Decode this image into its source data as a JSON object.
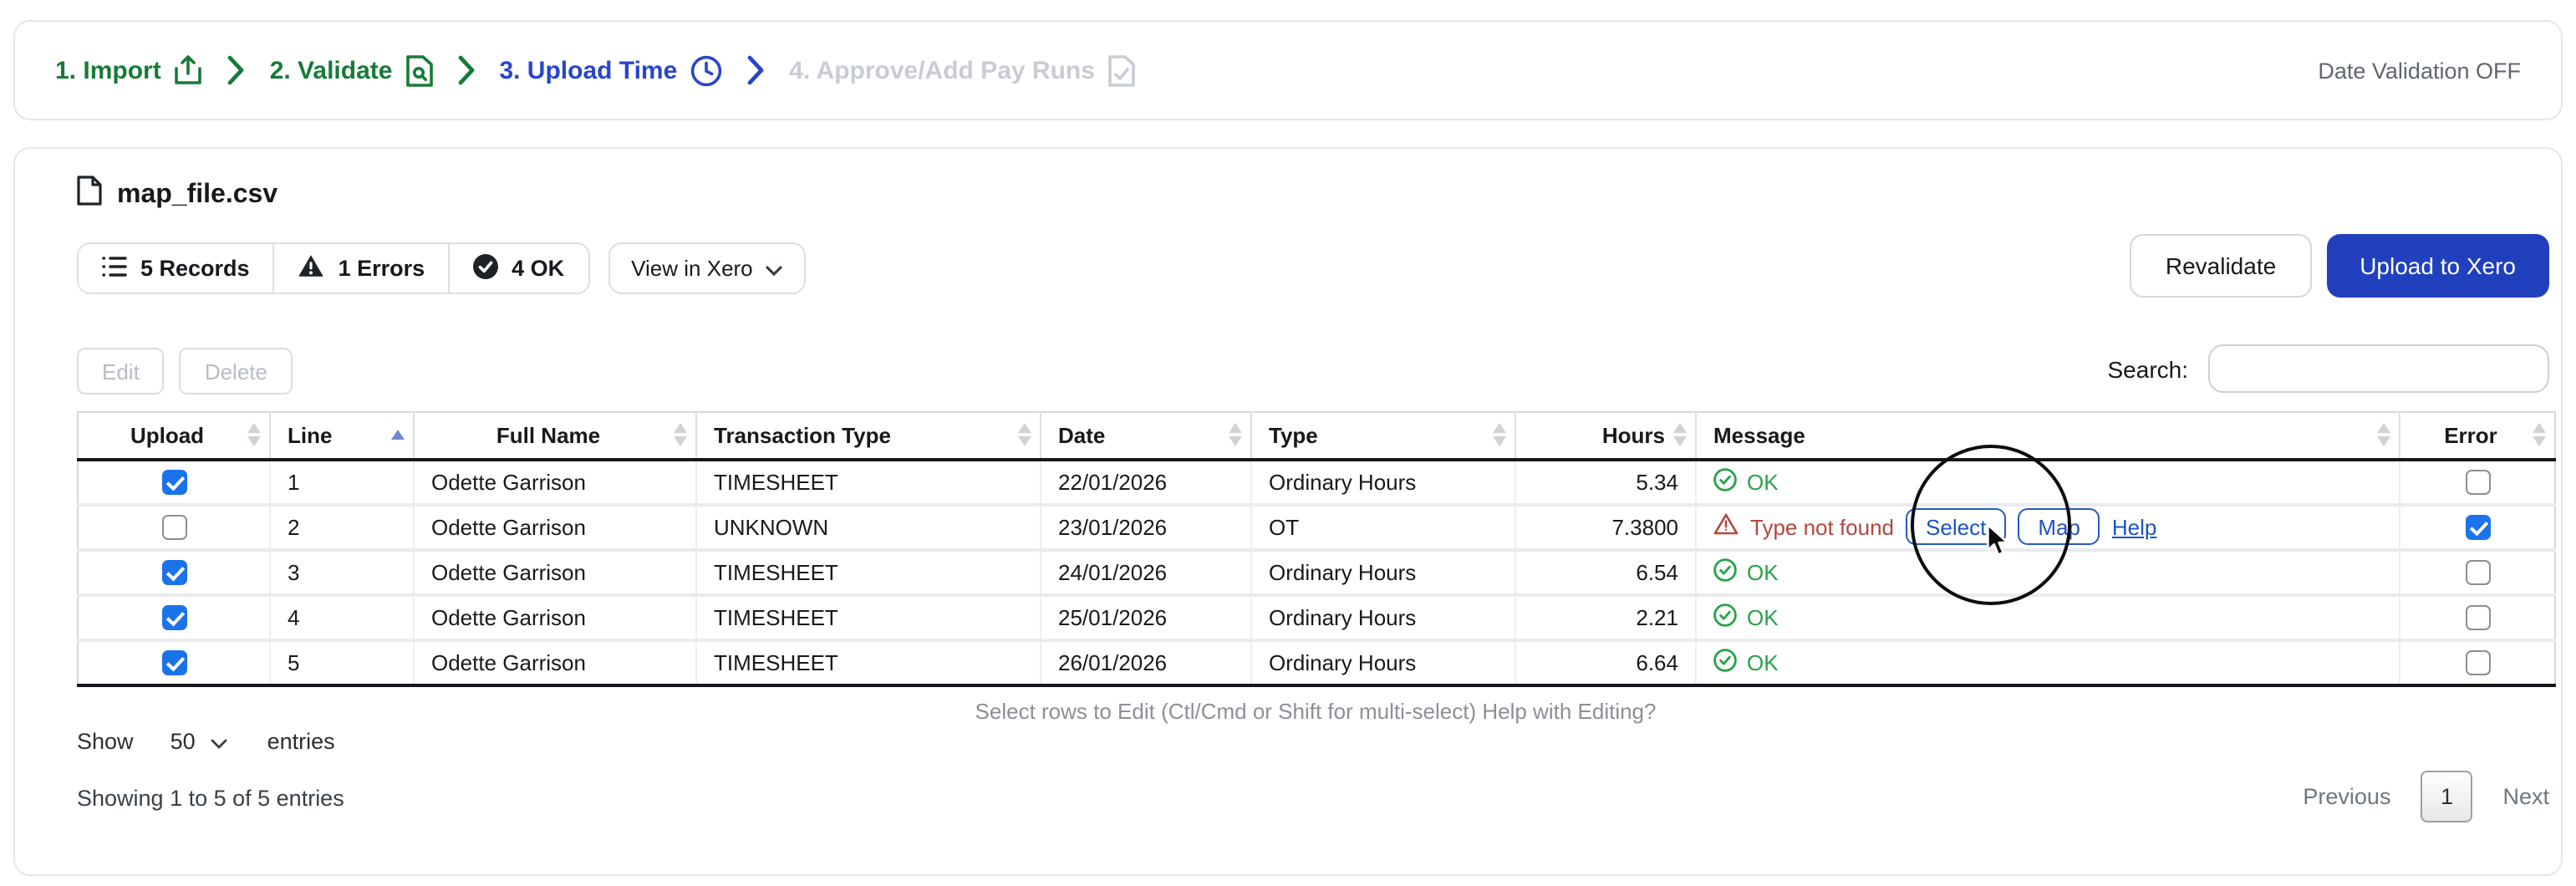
{
  "stepper": {
    "steps": [
      {
        "label": "1. Import",
        "icon": "upload-icon",
        "state": "done"
      },
      {
        "label": "2. Validate",
        "icon": "file-search-icon",
        "state": "done"
      },
      {
        "label": "3. Upload Time",
        "icon": "clock-icon",
        "state": "active"
      },
      {
        "label": "4. Approve/Add Pay Runs",
        "icon": "file-check-icon",
        "state": "disabled"
      }
    ],
    "date_validation": "Date Validation OFF"
  },
  "file": {
    "name": "map_file.csv",
    "icon": "document-icon"
  },
  "stats": {
    "records_label": "5 Records",
    "errors_label": "1 Errors",
    "ok_label": "4 OK",
    "view_in_xero_label": "View in Xero"
  },
  "actions": {
    "revalidate_label": "Revalidate",
    "upload_label": "Upload to Xero",
    "edit_label": "Edit",
    "delete_label": "Delete"
  },
  "search": {
    "label": "Search:",
    "value": ""
  },
  "table": {
    "columns": [
      {
        "label": "Upload",
        "align": "al-c",
        "sort": "both"
      },
      {
        "label": "Line",
        "align": "al-l",
        "sort": "asc"
      },
      {
        "label": "Full Name",
        "align": "al-c",
        "sort": "both"
      },
      {
        "label": "Transaction Type",
        "align": "al-l",
        "sort": "both"
      },
      {
        "label": "Date",
        "align": "al-l",
        "sort": "both"
      },
      {
        "label": "Type",
        "align": "al-l",
        "sort": "both"
      },
      {
        "label": "Hours",
        "align": "al-r",
        "sort": "both"
      },
      {
        "label": "Message",
        "align": "al-l",
        "sort": "both"
      },
      {
        "label": "Error",
        "align": "al-c",
        "sort": "both"
      }
    ],
    "rows": [
      {
        "upload": true,
        "line": "1",
        "full_name": "Odette Garrison",
        "transaction_type": "TIMESHEET",
        "date": "22/01/2026",
        "type": "Ordinary Hours",
        "hours": "5.34",
        "message": {
          "status": "ok",
          "text": "OK"
        },
        "error": false
      },
      {
        "upload": false,
        "line": "2",
        "full_name": "Odette Garrison",
        "transaction_type": "UNKNOWN",
        "date": "23/01/2026",
        "type": "OT",
        "hours": "7.3800",
        "message": {
          "status": "error",
          "text": "Type not found",
          "buttons": [
            "Select",
            "Map"
          ],
          "link": "Help"
        },
        "error": true
      },
      {
        "upload": true,
        "line": "3",
        "full_name": "Odette Garrison",
        "transaction_type": "TIMESHEET",
        "date": "24/01/2026",
        "type": "Ordinary Hours",
        "hours": "6.54",
        "message": {
          "status": "ok",
          "text": "OK"
        },
        "error": false
      },
      {
        "upload": true,
        "line": "4",
        "full_name": "Odette Garrison",
        "transaction_type": "TIMESHEET",
        "date": "25/01/2026",
        "type": "Ordinary Hours",
        "hours": "2.21",
        "message": {
          "status": "ok",
          "text": "OK"
        },
        "error": false
      },
      {
        "upload": true,
        "line": "5",
        "full_name": "Odette Garrison",
        "transaction_type": "TIMESHEET",
        "date": "26/01/2026",
        "type": "Ordinary Hours",
        "hours": "6.64",
        "message": {
          "status": "ok",
          "text": "OK"
        },
        "error": false
      }
    ]
  },
  "footer": {
    "help_text": "Select rows to Edit (Ctl/Cmd or Shift for multi-select) Help with Editing?",
    "show_label": "Show",
    "page_size": "50",
    "entries_label": "entries",
    "showing_text": "Showing 1 to 5 of 5 entries",
    "pagination": {
      "previous_label": "Previous",
      "page": "1",
      "next_label": "Next"
    }
  },
  "colors": {
    "step_done_green": "#177b38",
    "step_active_blue": "#2945cb",
    "step_disabled_gray": "#c7ccd5",
    "upload_button_blue": "#2140bd",
    "outline_button_blue": "#2a58c4",
    "checkbox_blue": "#1a73e8",
    "ok_green": "#28a348",
    "error_red": "#b0483e"
  }
}
